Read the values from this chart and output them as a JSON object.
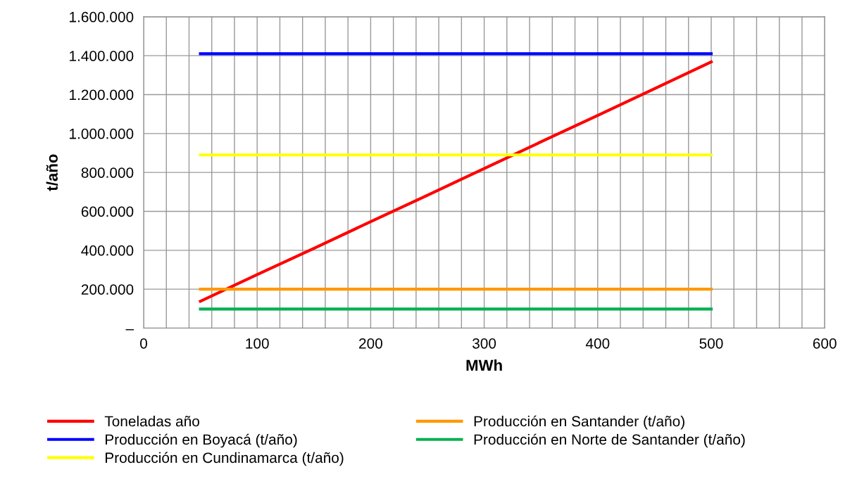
{
  "chart_data": {
    "type": "line",
    "xlabel": "MWh",
    "ylabel": "t/año",
    "xlim": [
      0,
      600
    ],
    "xticks": [
      0,
      {
        "value": 20,
        "label": null
      },
      {
        "value": 40,
        "label": null
      },
      {
        "value": 60,
        "label": null
      },
      {
        "value": 80,
        "label": null
      },
      100,
      {
        "value": 120,
        "label": null
      },
      {
        "value": 140,
        "label": null
      },
      {
        "value": 160,
        "label": null
      },
      {
        "value": 180,
        "label": null
      },
      200,
      {
        "value": 220,
        "label": null
      },
      {
        "value": 240,
        "label": null
      },
      {
        "value": 260,
        "label": null
      },
      {
        "value": 280,
        "label": null
      },
      300,
      {
        "value": 320,
        "label": null
      },
      {
        "value": 340,
        "label": null
      },
      {
        "value": 360,
        "label": null
      },
      {
        "value": 380,
        "label": null
      },
      400,
      {
        "value": 420,
        "label": null
      },
      {
        "value": 440,
        "label": null
      },
      {
        "value": 460,
        "label": null
      },
      {
        "value": 480,
        "label": null
      },
      500,
      {
        "value": 520,
        "label": null
      },
      {
        "value": 540,
        "label": null
      },
      {
        "value": 560,
        "label": null
      },
      {
        "value": 580,
        "label": null
      },
      600
    ],
    "ylim": [
      0,
      1600000
    ],
    "yticks": [
      {
        "value": 0,
        "label": "–"
      },
      {
        "value": 200000,
        "label": "200.000"
      },
      {
        "value": 400000,
        "label": "400.000"
      },
      {
        "value": 600000,
        "label": "600.000"
      },
      {
        "value": 800000,
        "label": "800.000"
      },
      {
        "value": 1000000,
        "label": "1.000.000"
      },
      {
        "value": 1200000,
        "label": "1.200.000"
      },
      {
        "value": 1400000,
        "label": "1.400.000"
      },
      {
        "value": 1600000,
        "label": "1.600.000"
      }
    ],
    "grid": true,
    "legend": "bottom",
    "marker": "none",
    "line_style": "solid",
    "x": [
      50,
      100,
      150,
      200,
      250,
      300,
      350,
      400,
      450,
      500
    ],
    "series": [
      {
        "name": "Toneladas año",
        "color": "#ff0000",
        "values": [
          138000,
          275000,
          410000,
          547000,
          683000,
          820000,
          957000,
          1093000,
          1230000,
          1368000
        ]
      },
      {
        "name": "Producción en Boyacá (t/año)",
        "color": "#0000ff",
        "values": [
          1410000,
          1410000,
          1410000,
          1410000,
          1410000,
          1410000,
          1410000,
          1410000,
          1410000,
          1410000
        ]
      },
      {
        "name": "Producción en Cundinamarca (t/año)",
        "color": "#ffff00",
        "values": [
          890000,
          890000,
          890000,
          890000,
          890000,
          890000,
          890000,
          890000,
          890000,
          890000
        ]
      },
      {
        "name": "Producción en Santander (t/año)",
        "color": "#ff9900",
        "values": [
          200000,
          200000,
          200000,
          200000,
          200000,
          200000,
          200000,
          200000,
          200000,
          200000
        ]
      },
      {
        "name": "Producción en Norte de Santander (t/año)",
        "color": "#00b050",
        "values": [
          98000,
          98000,
          98000,
          98000,
          98000,
          98000,
          98000,
          98000,
          98000,
          98000
        ]
      }
    ]
  }
}
